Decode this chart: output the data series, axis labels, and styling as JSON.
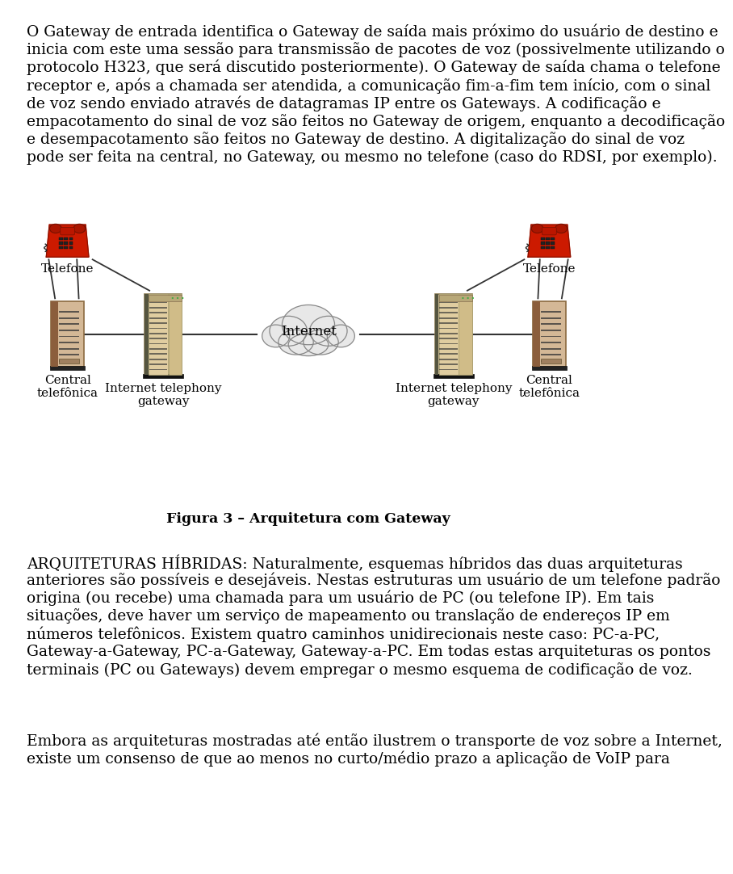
{
  "lines1": [
    "O Gateway de entrada identifica o Gateway de saída mais próximo do usuário de destino e",
    "inicia com este uma sessão para transmissão de pacotes de voz (possivelmente utilizando o",
    "protocolo H323, que será discutido posteriormente). O Gateway de saída chama o telefone",
    "receptor e, após a chamada ser atendida, a comunicação fim-a-fim tem início, com o sinal",
    "de voz sendo enviado através de datagramas IP entre os Gateways. A codificação e",
    "empacotamento do sinal de voz são feitos no Gateway de origem, enquanto a decodificação",
    "e desempacotamento são feitos no Gateway de destino. A digitalização do sinal de voz",
    "pode ser feita na central, no Gateway, ou mesmo no telefone (caso do RDSI, por exemplo)."
  ],
  "lines2": [
    "ARQUITETURAS HÍBRIDAS: Naturalmente, esquemas híbridos das duas arquiteturas",
    "anteriores são possíveis e desejáveis. Nestas estruturas um usuário de um telefone padrão",
    "origina (ou recebe) uma chamada para um usuário de PC (ou telefone IP). Em tais",
    "situações, deve haver um serviço de mapeamento ou translação de endereços IP em",
    "números telefônicos. Existem quatro caminhos unidirecionais neste caso: PC-a-PC,",
    "Gateway-a-Gateway, PC-a-Gateway, Gateway-a-PC. Em todas estas arquiteturas os pontos",
    "terminais (PC ou Gateways) devem empregar o mesmo esquema de codificação de voz."
  ],
  "lines3": [
    "Embora as arquiteturas mostradas até então ilustrem o transporte de voz sobre a Internet,",
    "existe um consenso de que ao menos no curto/médio prazo a aplicação de VoIP para"
  ],
  "figure_caption": "Figura 3 – Arquitetura com Gateway",
  "label_telefone_left": "Telefone",
  "label_telefone_right": "Telefone",
  "label_central_left": "Central\ntelefônica",
  "label_central_right": "Central\ntelefônica",
  "label_gateway_left": "Internet telephony\ngateway",
  "label_gateway_right": "Internet telephony\ngateway",
  "label_internet": "Internet",
  "bg_color": "#ffffff",
  "text_color": "#000000",
  "font_size_body": 13.5,
  "font_size_label": 11,
  "font_size_caption": 12
}
